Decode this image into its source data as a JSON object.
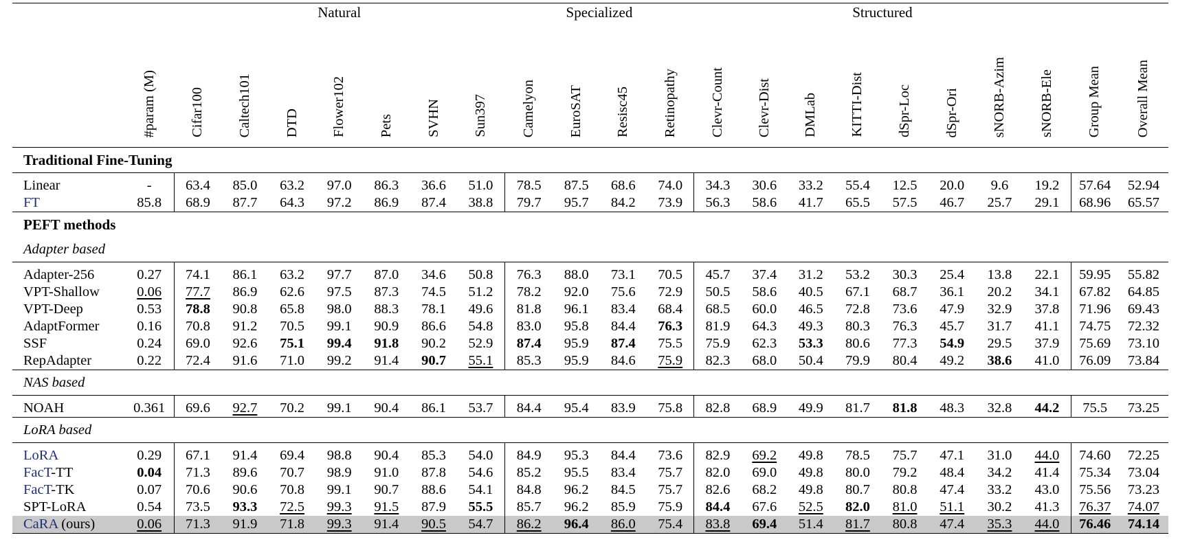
{
  "table": {
    "groups": [
      {
        "label": "Natural",
        "span": 7
      },
      {
        "label": "Specialized",
        "span": 4
      },
      {
        "label": "Structured",
        "span": 8
      }
    ],
    "columns": [
      "#param (M)",
      "Cifar100",
      "Caltech101",
      "DTD",
      "Flower102",
      "Pets",
      "SVHN",
      "Sun397",
      "Camelyon",
      "EuroSAT",
      "Resisc45",
      "Retinopathy",
      "Clevr-Count",
      "Clevr-Dist",
      "DMLab",
      "KITTI-Dist",
      "dSpr-Loc",
      "dSpr-Ori",
      "sNORB-Azim",
      "sNORB-Ele",
      "Group Mean",
      "Overall Mean"
    ],
    "sections": [
      {
        "title": "Traditional Fine-Tuning",
        "style": "bold",
        "rows": [
          {
            "name": "Linear",
            "blue": false,
            "cells": [
              "-",
              "63.4",
              "85.0",
              "63.2",
              "97.0",
              "86.3",
              "36.6",
              "51.0",
              "78.5",
              "87.5",
              "68.6",
              "74.0",
              "34.3",
              "30.6",
              "33.2",
              "55.4",
              "12.5",
              "20.0",
              "9.6",
              "19.2",
              "57.64",
              "52.94"
            ]
          },
          {
            "name": "FT",
            "blue": true,
            "cells": [
              "85.8",
              "68.9",
              "87.7",
              "64.3",
              "97.2",
              "86.9",
              "87.4",
              "38.8",
              "79.7",
              "95.7",
              "84.2",
              "73.9",
              "56.3",
              "58.6",
              "41.7",
              "65.5",
              "57.5",
              "46.7",
              "25.7",
              "29.1",
              "68.96",
              "65.57"
            ]
          }
        ]
      },
      {
        "title": "PEFT methods",
        "style": "bold",
        "subtitle": "Adapter based",
        "rows": [
          {
            "name": "Adapter-256",
            "cells": [
              "0.27",
              "74.1",
              "86.1",
              "63.2",
              "97.7",
              "87.0",
              "34.6",
              "50.8",
              "76.3",
              "88.0",
              "73.1",
              "70.5",
              "45.7",
              "37.4",
              "31.2",
              "53.2",
              "30.3",
              "25.4",
              "13.8",
              "22.1",
              "59.95",
              "55.82"
            ]
          },
          {
            "name": "VPT-Shallow",
            "cells": [
              "0.06",
              "77.7",
              "86.9",
              "62.6",
              "97.5",
              "87.3",
              "74.5",
              "51.2",
              "78.2",
              "92.0",
              "75.6",
              "72.9",
              "50.5",
              "58.6",
              "40.5",
              "67.1",
              "68.7",
              "36.1",
              "20.2",
              "34.1",
              "67.82",
              "64.85"
            ],
            "underline": [
              0,
              1
            ]
          },
          {
            "name": "VPT-Deep",
            "cells": [
              "0.53",
              "78.8",
              "90.8",
              "65.8",
              "98.0",
              "88.3",
              "78.1",
              "49.6",
              "81.8",
              "96.1",
              "83.4",
              "68.4",
              "68.5",
              "60.0",
              "46.5",
              "72.8",
              "73.6",
              "47.9",
              "32.9",
              "37.8",
              "71.96",
              "69.43"
            ],
            "bold": [
              1
            ]
          },
          {
            "name": "AdaptFormer",
            "cells": [
              "0.16",
              "70.8",
              "91.2",
              "70.5",
              "99.1",
              "90.9",
              "86.6",
              "54.8",
              "83.0",
              "95.8",
              "84.4",
              "76.3",
              "81.9",
              "64.3",
              "49.3",
              "80.3",
              "76.3",
              "45.7",
              "31.7",
              "41.1",
              "74.75",
              "72.32"
            ],
            "bold": [
              11
            ]
          },
          {
            "name": "SSF",
            "cells": [
              "0.24",
              "69.0",
              "92.6",
              "75.1",
              "99.4",
              "91.8",
              "90.2",
              "52.9",
              "87.4",
              "95.9",
              "87.4",
              "75.5",
              "75.9",
              "62.3",
              "53.3",
              "80.6",
              "77.3",
              "54.9",
              "29.5",
              "37.9",
              "75.69",
              "73.10"
            ],
            "bold": [
              3,
              4,
              5,
              8,
              10,
              14,
              17
            ]
          },
          {
            "name": "RepAdapter",
            "cells": [
              "0.22",
              "72.4",
              "91.6",
              "71.0",
              "99.2",
              "91.4",
              "90.7",
              "55.1",
              "85.3",
              "95.9",
              "84.6",
              "75.9",
              "82.3",
              "68.0",
              "50.4",
              "79.9",
              "80.4",
              "49.2",
              "38.6",
              "41.0",
              "76.09",
              "73.84"
            ],
            "bold": [
              6,
              18
            ],
            "underline": [
              7,
              11
            ]
          }
        ]
      },
      {
        "title": "NAS based",
        "style": "italic",
        "rows": [
          {
            "name": "NOAH",
            "cells": [
              "0.361",
              "69.6",
              "92.7",
              "70.2",
              "99.1",
              "90.4",
              "86.1",
              "53.7",
              "84.4",
              "95.4",
              "83.9",
              "75.8",
              "82.8",
              "68.9",
              "49.9",
              "81.7",
              "81.8",
              "48.3",
              "32.8",
              "44.2",
              "75.5",
              "73.25"
            ],
            "bold": [
              16,
              19
            ],
            "underline": [
              2
            ]
          }
        ]
      },
      {
        "title": "LoRA based",
        "style": "italic",
        "rows": [
          {
            "name": "LoRA",
            "blue": true,
            "cells": [
              "0.29",
              "67.1",
              "91.4",
              "69.4",
              "98.8",
              "90.4",
              "85.3",
              "54.0",
              "84.9",
              "95.3",
              "84.4",
              "73.6",
              "82.9",
              "69.2",
              "49.8",
              "78.5",
              "75.7",
              "47.1",
              "31.0",
              "44.0",
              "74.60",
              "72.25"
            ],
            "underline": [
              13,
              19
            ]
          },
          {
            "name": "FacT-TT",
            "blue_prefix": "FacT",
            "suffix": "-TT",
            "cells": [
              "0.04",
              "71.3",
              "89.6",
              "70.7",
              "98.9",
              "91.0",
              "87.8",
              "54.6",
              "85.2",
              "95.5",
              "83.4",
              "75.7",
              "82.0",
              "69.0",
              "49.8",
              "80.0",
              "79.2",
              "48.4",
              "34.2",
              "41.4",
              "75.34",
              "73.04"
            ],
            "bold": [
              0
            ]
          },
          {
            "name": "FacT-TK",
            "blue_prefix": "FacT",
            "suffix": "-TK",
            "cells": [
              "0.07",
              "70.6",
              "90.6",
              "70.8",
              "99.1",
              "90.7",
              "88.6",
              "54.1",
              "84.8",
              "96.2",
              "84.5",
              "75.7",
              "82.6",
              "68.2",
              "49.8",
              "80.7",
              "80.8",
              "47.4",
              "33.2",
              "43.0",
              "75.56",
              "73.23"
            ]
          },
          {
            "name": "SPT-LoRA",
            "cells": [
              "0.54",
              "73.5",
              "93.3",
              "72.5",
              "99.3",
              "91.5",
              "87.9",
              "55.5",
              "85.7",
              "96.2",
              "85.9",
              "75.9",
              "84.4",
              "67.6",
              "52.5",
              "82.0",
              "81.0",
              "51.1",
              "30.2",
              "41.3",
              "76.37",
              "74.07"
            ],
            "bold": [
              2,
              7,
              12,
              15
            ],
            "underline": [
              3,
              4,
              5,
              14,
              16,
              17,
              20,
              21
            ]
          },
          {
            "name": "CaRA (ours)",
            "blue_prefix": "CaRA",
            "suffix": " (ours)",
            "highlight": true,
            "cells": [
              "0.06",
              "71.3",
              "91.9",
              "71.8",
              "99.3",
              "91.4",
              "90.5",
              "54.7",
              "86.2",
              "96.4",
              "86.0",
              "75.4",
              "83.8",
              "69.4",
              "51.4",
              "81.7",
              "80.8",
              "47.4",
              "35.3",
              "44.0",
              "76.46",
              "74.14"
            ],
            "bold": [
              9,
              13,
              20,
              21
            ],
            "underline": [
              0,
              4,
              6,
              8,
              10,
              12,
              15,
              18,
              19
            ]
          }
        ]
      }
    ]
  }
}
